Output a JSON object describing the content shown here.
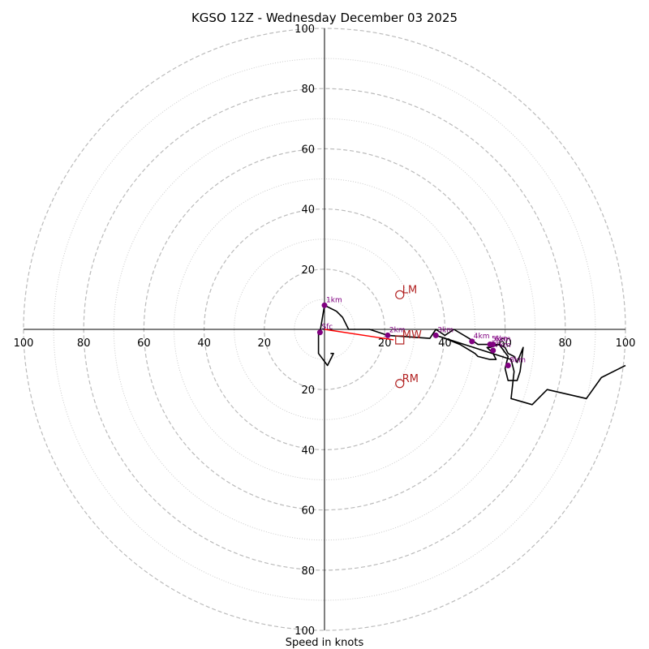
{
  "colors": {
    "hodograph": "#000000",
    "height_marker": "#800080",
    "motion": "#b22222",
    "shear_vector": "#ff0000",
    "ring_major": "#bbbbbb",
    "ring_minor": "#cccccc",
    "axis": "#000000"
  },
  "chart_data": {
    "type": "hodograph",
    "title": "KGSO 12Z - Wednesday December 03 2025",
    "xlabel": "Speed in knots",
    "units": "knots",
    "range": [
      -100,
      100
    ],
    "ring_speeds_major": [
      20,
      40,
      60,
      80,
      100
    ],
    "ring_speeds_minor": [
      10,
      30,
      50,
      70,
      90
    ],
    "tick_values": [
      20,
      40,
      60,
      80,
      100
    ],
    "tick_labels": [
      "20",
      "40",
      "60",
      "80",
      "100"
    ],
    "wind_profile": [
      [
        -1.5,
        -1
      ],
      [
        0,
        8
      ],
      [
        4,
        6
      ],
      [
        6,
        4
      ],
      [
        8,
        0
      ],
      [
        15,
        0
      ],
      [
        21,
        -2
      ],
      [
        35,
        -3
      ],
      [
        37,
        0
      ],
      [
        40,
        -2
      ],
      [
        43,
        0
      ],
      [
        48,
        -3
      ],
      [
        51,
        -5
      ],
      [
        58,
        -5
      ],
      [
        60,
        -6
      ],
      [
        61,
        -8
      ],
      [
        63,
        -9
      ],
      [
        64,
        -11
      ],
      [
        66,
        -6
      ],
      [
        65,
        -14
      ],
      [
        64,
        -17
      ],
      [
        61,
        -17
      ],
      [
        60,
        -13
      ],
      [
        61,
        -9
      ],
      [
        58,
        -5
      ],
      [
        55,
        -6
      ],
      [
        54,
        -6
      ],
      [
        56,
        -8
      ],
      [
        57,
        -10
      ],
      [
        55,
        -10
      ],
      [
        51,
        -9
      ],
      [
        50,
        -8
      ],
      [
        45,
        -5
      ],
      [
        40,
        -3
      ],
      [
        37,
        -2
      ],
      [
        62,
        -10
      ],
      [
        63,
        -14
      ],
      [
        62,
        -23
      ],
      [
        69,
        -25
      ],
      [
        74,
        -20
      ],
      [
        87,
        -23
      ],
      [
        92,
        -16
      ],
      [
        100,
        -12
      ]
    ],
    "surface_hook": [
      [
        -2,
        -1
      ],
      [
        -2,
        -8
      ],
      [
        1,
        -12
      ],
      [
        3,
        -8
      ],
      [
        2,
        -8
      ]
    ],
    "height_markers": [
      {
        "label": "Sfc",
        "u": -1.5,
        "v": -1
      },
      {
        "label": "1km",
        "u": 0,
        "v": 8
      },
      {
        "label": "2km",
        "u": 21,
        "v": -2
      },
      {
        "label": "3km",
        "u": 37,
        "v": -2
      },
      {
        "label": "4km",
        "u": 49,
        "v": -4
      },
      {
        "label": "5km",
        "u": 55,
        "v": -5
      },
      {
        "label": "6km",
        "u": 56,
        "v": -5
      },
      {
        "label": "7km",
        "u": 56,
        "v": -7
      },
      {
        "label": "8km",
        "u": 61,
        "v": -12
      }
    ],
    "storm_motions": [
      {
        "label": "LM",
        "u": 25,
        "v": 11.5,
        "marker": "circle"
      },
      {
        "label": "MW",
        "u": 25,
        "v": -3.5,
        "marker": "square"
      },
      {
        "label": "RM",
        "u": 25,
        "v": -18,
        "marker": "circle"
      }
    ],
    "shear_vector": {
      "from": [
        0,
        0
      ],
      "to": [
        23,
        -3.5
      ]
    }
  }
}
